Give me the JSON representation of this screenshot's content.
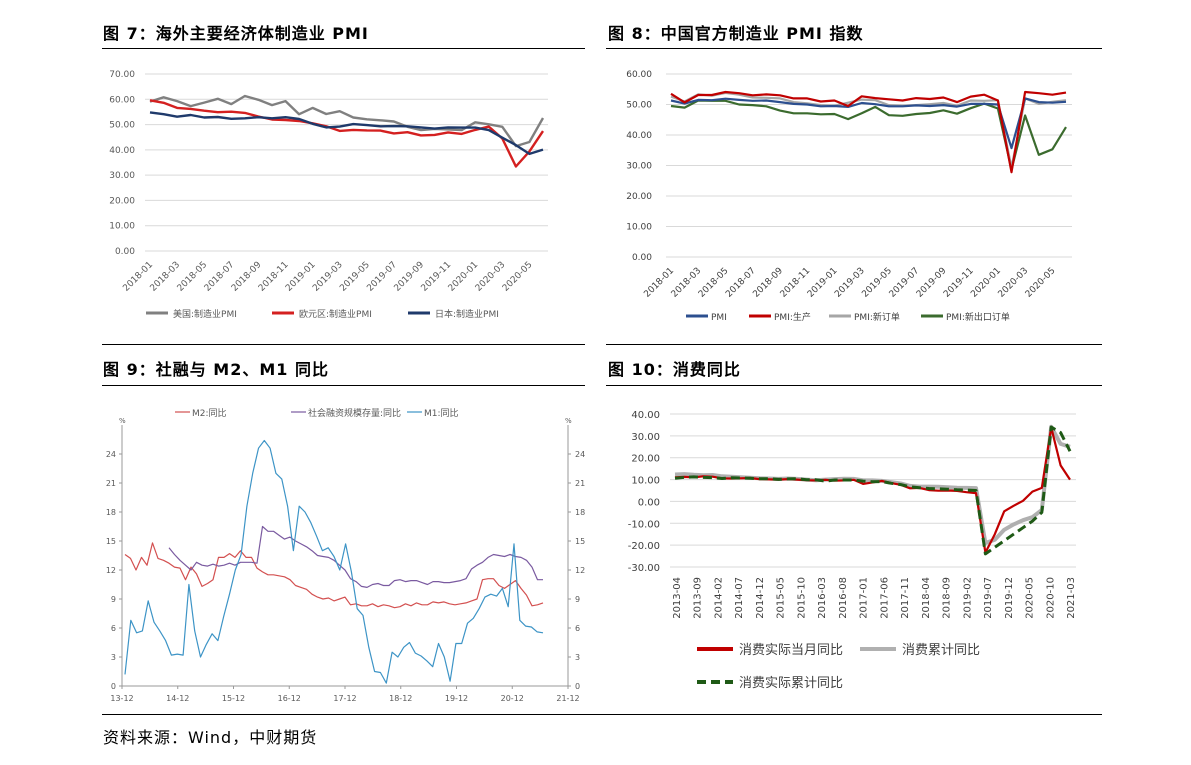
{
  "fig7": {
    "title": "图 7：海外主要经济体制造业 PMI",
    "chart_data": {
      "type": "line",
      "yticks": [
        "70.00",
        "60.00",
        "50.00",
        "40.00",
        "30.00",
        "20.00",
        "10.00",
        "0.00"
      ],
      "ylim": [
        0,
        70
      ],
      "xticks": [
        "2018-01",
        "2018-03",
        "2018-05",
        "2018-07",
        "2018-09",
        "2018-11",
        "2019-01",
        "2019-03",
        "2019-05",
        "2019-07",
        "2019-09",
        "2019-11",
        "2020-01",
        "2020-03",
        "2020-05"
      ],
      "series": [
        {
          "name": "美国:制造业PMI",
          "color": "#808080",
          "values": [
            59.1,
            60.8,
            59.3,
            57.3,
            58.7,
            60.2,
            58.1,
            61.3,
            59.8,
            57.7,
            59.3,
            54.1,
            56.6,
            54.2,
            55.3,
            52.8,
            52.1,
            51.7,
            51.2,
            49.1,
            47.8,
            48.3,
            48.1,
            47.8,
            50.9,
            50.1,
            49.1,
            41.5,
            43.1,
            52.6
          ]
        },
        {
          "name": "欧元区:制造业PMI",
          "color": "#d42020",
          "values": [
            59.6,
            58.6,
            56.6,
            56.2,
            55.5,
            54.9,
            55.1,
            54.6,
            53.2,
            52.0,
            51.8,
            51.4,
            50.5,
            49.3,
            47.5,
            47.9,
            47.7,
            47.6,
            46.5,
            47.0,
            45.7,
            45.9,
            46.9,
            46.3,
            47.9,
            49.2,
            44.5,
            33.4,
            39.4,
            47.4
          ]
        },
        {
          "name": "日本:制造业PMI",
          "color": "#1f3a6b",
          "values": [
            54.8,
            54.1,
            53.1,
            53.8,
            52.8,
            53.0,
            52.3,
            52.5,
            52.9,
            52.5,
            52.9,
            52.2,
            50.3,
            48.9,
            49.2,
            50.2,
            49.8,
            49.3,
            49.4,
            49.3,
            48.9,
            48.4,
            48.9,
            48.8,
            48.8,
            47.8,
            44.8,
            41.9,
            38.4,
            40.1
          ]
        }
      ]
    }
  },
  "fig8": {
    "title": "图 8：中国官方制造业 PMI 指数",
    "chart_data": {
      "type": "line",
      "yticks": [
        "60.00",
        "50.00",
        "40.00",
        "30.00",
        "20.00",
        "10.00",
        "0.00"
      ],
      "ylim": [
        0,
        60
      ],
      "xticks": [
        "2018-01",
        "2018-03",
        "2018-05",
        "2018-07",
        "2018-09",
        "2018-11",
        "2019-01",
        "2019-03",
        "2019-05",
        "2019-07",
        "2019-09",
        "2019-11",
        "2020-01",
        "2020-03",
        "2020-05"
      ],
      "series": [
        {
          "name": "PMI",
          "color": "#2c4f8f",
          "values": [
            51.3,
            50.3,
            51.5,
            51.4,
            51.9,
            51.5,
            51.2,
            51.3,
            50.8,
            50.2,
            50.0,
            49.4,
            49.5,
            49.2,
            50.5,
            50.1,
            49.4,
            49.4,
            49.7,
            49.5,
            49.8,
            49.3,
            50.2,
            50.2,
            50.0,
            35.7,
            52.0,
            50.8,
            50.6,
            50.9
          ]
        },
        {
          "name": "PMI:生产",
          "color": "#c00000",
          "values": [
            53.5,
            50.7,
            53.1,
            53.1,
            54.1,
            53.7,
            53.0,
            53.3,
            53.0,
            52.0,
            52.0,
            51.0,
            51.3,
            49.5,
            52.7,
            52.1,
            51.7,
            51.3,
            52.1,
            51.8,
            52.3,
            50.8,
            52.6,
            53.2,
            51.3,
            27.8,
            54.1,
            53.7,
            53.2,
            53.9
          ]
        },
        {
          "name": "PMI:新订单",
          "color": "#a6a6a6",
          "values": [
            52.6,
            51.0,
            53.3,
            52.9,
            53.8,
            53.2,
            52.3,
            52.2,
            52.0,
            50.8,
            50.4,
            49.8,
            49.6,
            50.6,
            51.6,
            51.4,
            49.8,
            49.6,
            49.8,
            50.1,
            50.5,
            49.6,
            51.3,
            51.2,
            51.4,
            29.3,
            52.0,
            50.2,
            50.9,
            51.4
          ]
        },
        {
          "name": "PMI:新出口订单",
          "color": "#3b6b2e",
          "values": [
            49.5,
            49.0,
            51.3,
            51.2,
            51.2,
            50.0,
            49.8,
            49.4,
            48.0,
            47.1,
            47.1,
            46.8,
            46.9,
            45.2,
            47.1,
            49.2,
            46.5,
            46.3,
            46.9,
            47.2,
            48.1,
            47.0,
            48.8,
            50.3,
            48.7,
            28.7,
            46.4,
            33.5,
            35.3,
            42.6
          ]
        }
      ]
    }
  },
  "fig9": {
    "title": "图 9：社融与 M2、M1 同比",
    "chart_data": {
      "type": "line",
      "unit": "%",
      "yticks": [
        "24",
        "21",
        "18",
        "15",
        "12",
        "9",
        "6",
        "3",
        "0"
      ],
      "ylim": [
        0,
        27
      ],
      "xticks": [
        "13-12",
        "14-12",
        "15-12",
        "16-12",
        "17-12",
        "18-12",
        "19-12",
        "20-12",
        "21-12"
      ],
      "series": [
        {
          "name": "M2:同比",
          "color": "#d35050",
          "values": [
            13.6,
            13.2,
            12.0,
            13.3,
            12.5,
            14.8,
            13.2,
            13.0,
            12.7,
            12.3,
            12.2,
            11.0,
            12.3,
            11.6,
            10.3,
            10.6,
            11.0,
            13.3,
            13.3,
            13.7,
            13.3,
            14.0,
            13.3,
            13.3,
            12.2,
            11.8,
            11.5,
            11.5,
            11.4,
            11.3,
            11.0,
            10.4,
            10.2,
            10.0,
            9.5,
            9.2,
            9.0,
            9.1,
            8.8,
            9.0,
            9.2,
            8.4,
            8.5,
            8.3,
            8.3,
            8.5,
            8.2,
            8.4,
            8.3,
            8.1,
            8.2,
            8.5,
            8.3,
            8.6,
            8.4,
            8.4,
            8.7,
            8.6,
            8.7,
            8.5,
            8.4,
            8.5,
            8.6,
            8.8,
            9.0,
            11.0,
            11.1,
            11.1,
            10.4,
            10.1,
            10.5,
            10.9,
            10.1,
            9.4,
            8.3,
            8.4,
            8.6
          ]
        },
        {
          "name": "社会融资规模存量:同比",
          "color": "#7a5aa0",
          "values": [
            null,
            null,
            null,
            null,
            null,
            null,
            null,
            null,
            14.3,
            13.6,
            13.0,
            12.5,
            12.0,
            12.8,
            12.5,
            12.4,
            12.6,
            12.4,
            12.5,
            12.7,
            12.5,
            12.8,
            12.8,
            12.8,
            12.7,
            16.5,
            16.0,
            16.0,
            15.6,
            15.2,
            15.4,
            15.0,
            14.7,
            14.4,
            14.0,
            13.5,
            13.4,
            13.3,
            13.0,
            12.5,
            12.0,
            11.1,
            10.8,
            10.3,
            10.2,
            10.5,
            10.6,
            10.4,
            10.4,
            10.9,
            11.0,
            10.8,
            10.9,
            10.9,
            10.7,
            10.5,
            10.8,
            10.8,
            10.7,
            10.7,
            10.8,
            10.9,
            11.1,
            12.1,
            12.5,
            12.8,
            13.3,
            13.6,
            13.5,
            13.4,
            13.6,
            13.4,
            13.3,
            13.0,
            12.3,
            11.0,
            11.0
          ]
        },
        {
          "name": "M1:同比",
          "color": "#3d94c6",
          "values": [
            1.2,
            6.8,
            5.5,
            5.7,
            8.8,
            6.6,
            5.7,
            4.7,
            3.2,
            3.3,
            3.2,
            10.5,
            5.7,
            3.0,
            4.3,
            5.4,
            4.7,
            7.2,
            9.5,
            12.0,
            13.6,
            18.6,
            22.0,
            24.6,
            25.4,
            24.6,
            22.0,
            21.4,
            18.6,
            14.0,
            18.6,
            18.0,
            16.9,
            15.5,
            14.0,
            14.3,
            13.4,
            12.0,
            14.7,
            11.8,
            8.0,
            7.3,
            4.0,
            1.5,
            1.4,
            0.3,
            3.5,
            3.0,
            4.0,
            4.5,
            3.4,
            3.1,
            2.6,
            2.0,
            4.4,
            3.0,
            0.5,
            4.4,
            4.4,
            6.5,
            7.0,
            8.0,
            9.2,
            9.5,
            9.3,
            10.1,
            8.2,
            14.7,
            6.8,
            6.2,
            6.1,
            5.6,
            5.5
          ]
        }
      ]
    }
  },
  "fig10": {
    "title": "图 10：消费同比",
    "chart_data": {
      "type": "line",
      "yticks": [
        "40.00",
        "30.00",
        "20.00",
        "10.00",
        "0.00",
        "-10.00",
        "-20.00",
        "-30.00"
      ],
      "ylim": [
        -30,
        40
      ],
      "xticks": [
        "2013-04",
        "2013-09",
        "2014-02",
        "2014-07",
        "2014-12",
        "2015-05",
        "2015-10",
        "2016-03",
        "2016-08",
        "2017-01",
        "2017-06",
        "2017-11",
        "2018-04",
        "2018-09",
        "2019-02",
        "2019-07",
        "2019-12",
        "2020-05",
        "2020-10",
        "2021-03"
      ],
      "series": [
        {
          "name": "消费实际当月同比",
          "color": "#c00000",
          "values": [
            11.0,
            11.2,
            11.0,
            11.5,
            11.3,
            10.6,
            10.5,
            10.6,
            10.7,
            10.2,
            10.1,
            10.0,
            10.2,
            10.0,
            9.7,
            9.6,
            9.9,
            9.5,
            9.6,
            9.9,
            8.0,
            8.7,
            9.4,
            8.4,
            7.6,
            6.0,
            6.2,
            5.2,
            4.9,
            5.0,
            4.8,
            4.2,
            3.8,
            -23.4,
            -15.0,
            -4.5,
            -2.0,
            0.3,
            4.5,
            6.2,
            33.9,
            16.5,
            10.0
          ]
        },
        {
          "name": "消费累计同比",
          "color": "#b0b0b0",
          "values": [
            12.3,
            12.5,
            12.2,
            12.0,
            12.1,
            11.5,
            11.3,
            11.1,
            10.8,
            10.6,
            10.5,
            10.3,
            10.5,
            10.3,
            10.0,
            9.7,
            10.0,
            10.2,
            10.4,
            10.3,
            9.6,
            9.6,
            9.4,
            8.8,
            8.2,
            7.1,
            6.8,
            6.8,
            6.7,
            6.5,
            6.3,
            6.2,
            6.1,
            -19.0,
            -17.5,
            -13.0,
            -10.5,
            -8.6,
            -7.2,
            -3.9,
            34.2,
            26.3,
            25.0
          ]
        },
        {
          "name": "消费实际累计同比",
          "color": "#1f5a16",
          "values": [
            10.6,
            11.0,
            11.2,
            11.0,
            10.9,
            10.5,
            10.8,
            10.7,
            10.6,
            10.4,
            10.4,
            10.1,
            10.3,
            10.4,
            9.9,
            9.9,
            9.3,
            9.8,
            9.8,
            9.8,
            9.3,
            9.0,
            9.1,
            8.3,
            7.7,
            6.7,
            6.3,
            5.9,
            5.8,
            5.6,
            5.3,
            5.2,
            5.0,
            -24.0,
            -21.0,
            -18.0,
            -15.0,
            -12.0,
            -9.0,
            -5.0,
            34.0,
            31.5,
            23.0
          ]
        }
      ]
    }
  },
  "source": "资料来源：Wind，中财期货"
}
